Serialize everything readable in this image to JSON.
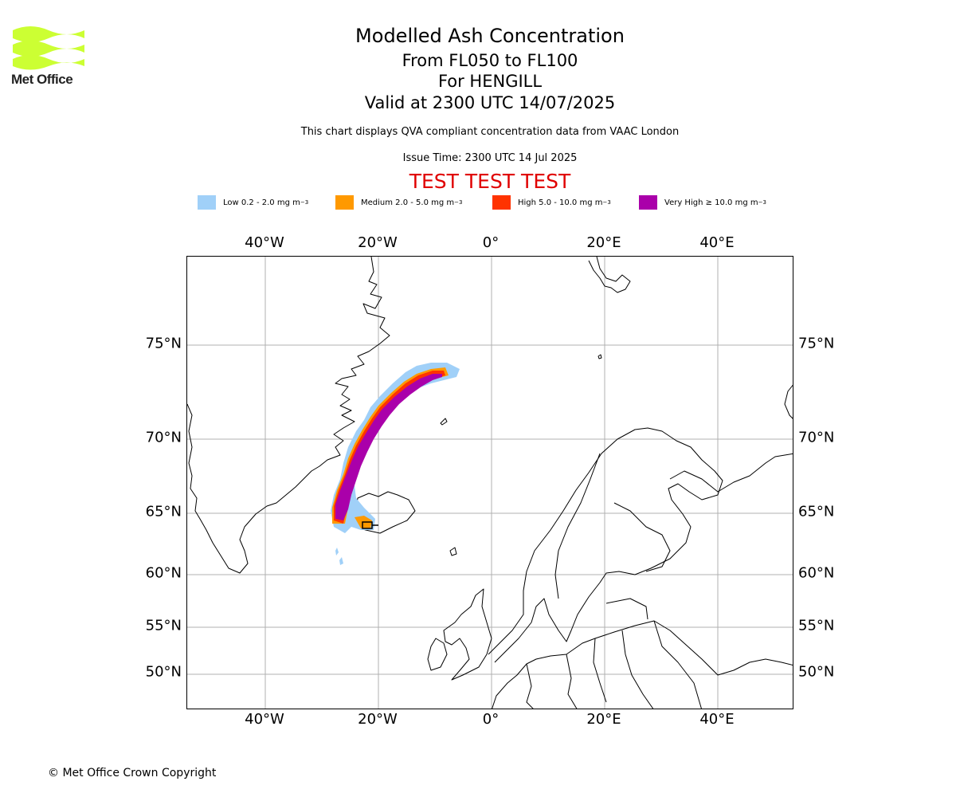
{
  "logo": {
    "text": "Met Office",
    "color": "#ccff33"
  },
  "title": {
    "line1": "Modelled Ash Concentration",
    "line2": "From FL050 to FL100",
    "line3": "For HENGILL",
    "line4": "Valid at 2300 UTC 14/07/2025"
  },
  "subtitle": "This chart displays QVA compliant concentration data from VAAC London",
  "issue_time": "Issue Time: 2300 UTC 14 Jul 2025",
  "test_banner": "TEST TEST TEST",
  "legend": [
    {
      "label": "Low 0.2 - 2.0 mg m",
      "sup": "−3",
      "color": "#a0d0f8"
    },
    {
      "label": "Medium 2.0 - 5.0 mg m",
      "sup": "−3",
      "color": "#ff9900"
    },
    {
      "label": "High 5.0 - 10.0 mg m",
      "sup": "−3",
      "color": "#ff3300"
    },
    {
      "label": "Very High ≥ 10.0 mg m",
      "sup": "−3",
      "color": "#aa00aa"
    }
  ],
  "axes": {
    "lon_labels": [
      "40°W",
      "20°W",
      "0°",
      "20°E",
      "40°E"
    ],
    "lat_labels": [
      "75°N",
      "70°N",
      "65°N",
      "60°N",
      "55°N",
      "50°N"
    ]
  },
  "copyright": "© Met Office Crown Copyright"
}
